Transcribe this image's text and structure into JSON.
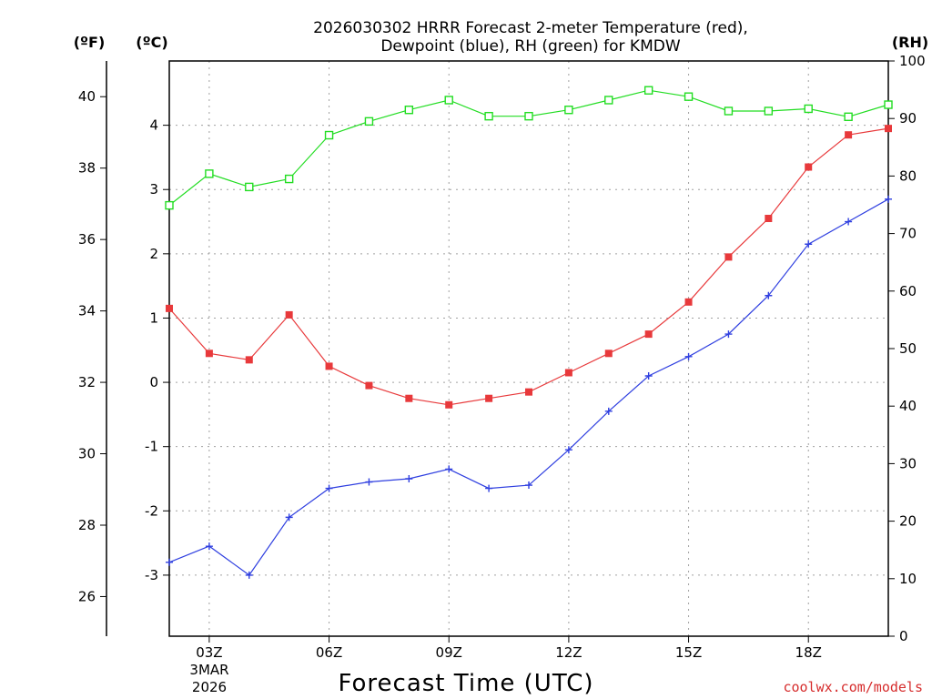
{
  "chart_data": {
    "type": "line",
    "title_line1": "2026030302 HRRR Forecast 2-meter Temperature (red),",
    "title_line2": "Dewpoint (blue), RH (green) for KMDW",
    "xlabel": "Forecast Time (UTC)",
    "credit": "coolwx.com/models",
    "left_outer_unit": "(ºF)",
    "left_inner_unit": "(ºC)",
    "right_unit": "(RH)",
    "date_label_month": "3MAR",
    "date_label_year": "2026",
    "x": [
      2,
      3,
      4,
      5,
      6,
      7,
      8,
      9,
      10,
      11,
      12,
      13,
      14,
      15,
      16,
      17,
      18,
      19,
      20
    ],
    "xlim": [
      2,
      20
    ],
    "x_ticks": [
      {
        "value": 3,
        "label": "03Z"
      },
      {
        "value": 6,
        "label": "06Z"
      },
      {
        "value": 9,
        "label": "09Z"
      },
      {
        "value": 12,
        "label": "12Z"
      },
      {
        "value": 15,
        "label": "15Z"
      },
      {
        "value": 18,
        "label": "18Z"
      }
    ],
    "ylim_celsius": [
      -3.95,
      5.0
    ],
    "ylim_rh": [
      0,
      100
    ],
    "celsius_ticks": [
      "-3",
      "-2",
      "-1",
      "0",
      "1",
      "2",
      "3",
      "4"
    ],
    "fahrenheit_ticks": [
      "26",
      "28",
      "30",
      "32",
      "34",
      "36",
      "38",
      "40"
    ],
    "rh_ticks": [
      "0",
      "10",
      "20",
      "30",
      "40",
      "50",
      "60",
      "70",
      "80",
      "90",
      "100"
    ],
    "series": [
      {
        "name": "Temperature",
        "color": "#e8393b",
        "marker": "filled-square",
        "axis": "celsius",
        "values": [
          1.15,
          0.45,
          0.35,
          1.05,
          0.25,
          -0.05,
          -0.25,
          -0.35,
          -0.25,
          -0.15,
          0.15,
          0.45,
          0.75,
          1.25,
          1.95,
          2.55,
          3.35,
          3.85,
          3.95
        ]
      },
      {
        "name": "Dewpoint",
        "color": "#2f3fe0",
        "marker": "plus",
        "axis": "celsius",
        "values": [
          -2.8,
          -2.55,
          -3.0,
          -2.1,
          -1.65,
          -1.55,
          -1.5,
          -1.35,
          -1.65,
          -1.6,
          -1.05,
          -0.45,
          0.1,
          0.4,
          0.75,
          1.35,
          2.15,
          2.5,
          2.85
        ]
      },
      {
        "name": "RH",
        "color": "#22dd22",
        "marker": "open-square",
        "axis": "rh",
        "values": [
          74.9,
          80.4,
          78.1,
          79.5,
          87.1,
          89.5,
          91.5,
          93.2,
          90.4,
          90.4,
          91.5,
          93.2,
          94.9,
          93.8,
          91.3,
          91.3,
          91.7,
          90.3,
          92.4
        ]
      }
    ]
  }
}
